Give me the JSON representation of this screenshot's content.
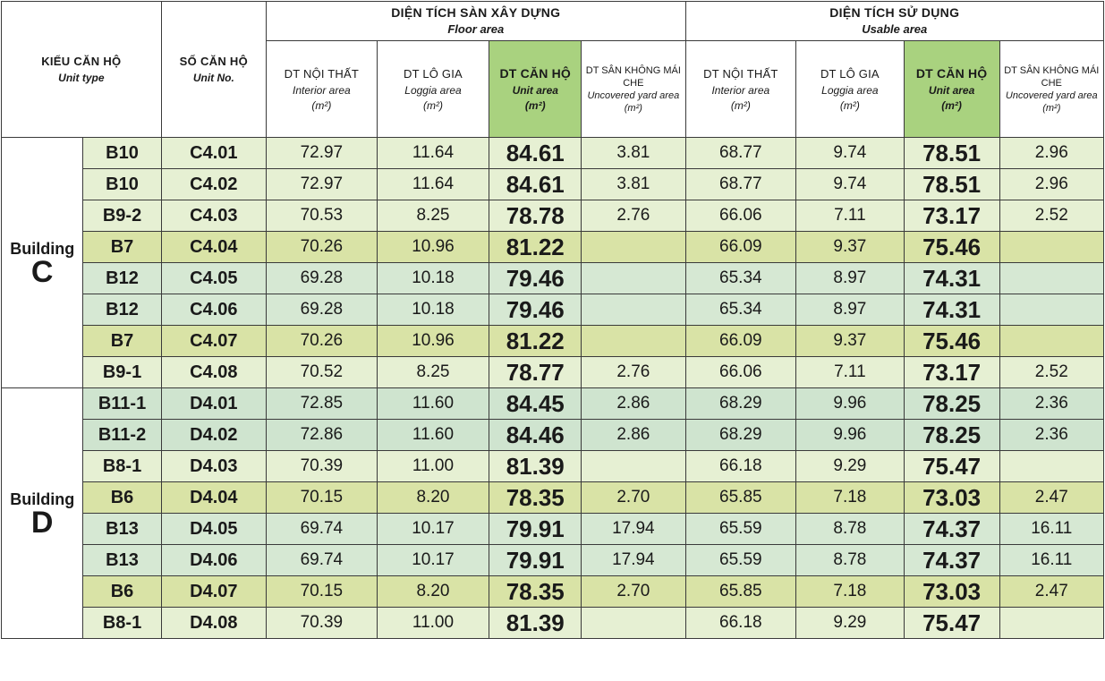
{
  "header": {
    "unit_type": {
      "main": "KIỂU CĂN HỘ",
      "sub": "Unit type"
    },
    "unit_no": {
      "main": "SỐ CĂN HỘ",
      "sub": "Unit No."
    },
    "floor_area": {
      "main": "DIỆN TÍCH SÀN XÂY DỰNG",
      "sub": "Floor area"
    },
    "usable_area": {
      "main": "DIỆN TÍCH SỬ DỤNG",
      "sub": "Usable area"
    },
    "columns": [
      {
        "main": "DT NỘI THẤT",
        "sub": "Interior area",
        "unit": "(m²)"
      },
      {
        "main": "DT LÔ GIA",
        "sub": "Loggia area",
        "unit": "(m²)"
      },
      {
        "main": "DT CĂN HỘ",
        "sub": "Unit area",
        "unit": "(m²)"
      },
      {
        "main": "DT SÂN KHÔNG MÁI CHE",
        "sub": "Uncovered yard area (m²)"
      }
    ]
  },
  "buildings": [
    {
      "word": "Building",
      "letter": "C"
    },
    {
      "word": "Building",
      "letter": "D"
    }
  ],
  "rows": [
    {
      "type": "B10",
      "no": "C4.01",
      "fi": "72.97",
      "fl": "11.64",
      "fu": "84.61",
      "fy": "3.81",
      "ui": "68.77",
      "ul": "9.74",
      "uu": "78.51",
      "uy": "2.96",
      "tone": "r-b"
    },
    {
      "type": "B10",
      "no": "C4.02",
      "fi": "72.97",
      "fl": "11.64",
      "fu": "84.61",
      "fy": "3.81",
      "ui": "68.77",
      "ul": "9.74",
      "uu": "78.51",
      "uy": "2.96",
      "tone": "r-b"
    },
    {
      "type": "B9-2",
      "no": "C4.03",
      "fi": "70.53",
      "fl": "8.25",
      "fu": "78.78",
      "fy": "2.76",
      "ui": "66.06",
      "ul": "7.11",
      "uu": "73.17",
      "uy": "2.52",
      "tone": "r-b"
    },
    {
      "type": "B7",
      "no": "C4.04",
      "fi": "70.26",
      "fl": "10.96",
      "fu": "81.22",
      "fy": "",
      "ui": "66.09",
      "ul": "9.37",
      "uu": "75.46",
      "uy": "",
      "tone": "r-o"
    },
    {
      "type": "B12",
      "no": "C4.05",
      "fi": "69.28",
      "fl": "10.18",
      "fu": "79.46",
      "fy": "",
      "ui": "65.34",
      "ul": "8.97",
      "uu": "74.31",
      "uy": "",
      "tone": "r-l"
    },
    {
      "type": "B12",
      "no": "C4.06",
      "fi": "69.28",
      "fl": "10.18",
      "fu": "79.46",
      "fy": "",
      "ui": "65.34",
      "ul": "8.97",
      "uu": "74.31",
      "uy": "",
      "tone": "r-l"
    },
    {
      "type": "B7",
      "no": "C4.07",
      "fi": "70.26",
      "fl": "10.96",
      "fu": "81.22",
      "fy": "",
      "ui": "66.09",
      "ul": "9.37",
      "uu": "75.46",
      "uy": "",
      "tone": "r-o"
    },
    {
      "type": "B9-1",
      "no": "C4.08",
      "fi": "70.52",
      "fl": "8.25",
      "fu": "78.77",
      "fy": "2.76",
      "ui": "66.06",
      "ul": "7.11",
      "uu": "73.17",
      "uy": "2.52",
      "tone": "r-b"
    },
    {
      "type": "B11-1",
      "no": "D4.01",
      "fi": "72.85",
      "fl": "11.60",
      "fu": "84.45",
      "fy": "2.86",
      "ui": "68.29",
      "ul": "9.96",
      "uu": "78.25",
      "uy": "2.36",
      "tone": "r-t"
    },
    {
      "type": "B11-2",
      "no": "D4.02",
      "fi": "72.86",
      "fl": "11.60",
      "fu": "84.46",
      "fy": "2.86",
      "ui": "68.29",
      "ul": "9.96",
      "uu": "78.25",
      "uy": "2.36",
      "tone": "r-t"
    },
    {
      "type": "B8-1",
      "no": "D4.03",
      "fi": "70.39",
      "fl": "11.00",
      "fu": "81.39",
      "fy": "",
      "ui": "66.18",
      "ul": "9.29",
      "uu": "75.47",
      "uy": "",
      "tone": "r-b"
    },
    {
      "type": "B6",
      "no": "D4.04",
      "fi": "70.15",
      "fl": "8.20",
      "fu": "78.35",
      "fy": "2.70",
      "ui": "65.85",
      "ul": "7.18",
      "uu": "73.03",
      "uy": "2.47",
      "tone": "r-o"
    },
    {
      "type": "B13",
      "no": "D4.05",
      "fi": "69.74",
      "fl": "10.17",
      "fu": "79.91",
      "fy": "17.94",
      "ui": "65.59",
      "ul": "8.78",
      "uu": "74.37",
      "uy": "16.11",
      "tone": "r-l"
    },
    {
      "type": "B13",
      "no": "D4.06",
      "fi": "69.74",
      "fl": "10.17",
      "fu": "79.91",
      "fy": "17.94",
      "ui": "65.59",
      "ul": "8.78",
      "uu": "74.37",
      "uy": "16.11",
      "tone": "r-l"
    },
    {
      "type": "B6",
      "no": "D4.07",
      "fi": "70.15",
      "fl": "8.20",
      "fu": "78.35",
      "fy": "2.70",
      "ui": "65.85",
      "ul": "7.18",
      "uu": "73.03",
      "uy": "2.47",
      "tone": "r-o"
    },
    {
      "type": "B8-1",
      "no": "D4.08",
      "fi": "70.39",
      "fl": "11.00",
      "fu": "81.39",
      "fy": "",
      "ui": "66.18",
      "ul": "9.29",
      "uu": "75.47",
      "uy": "",
      "tone": "r-b"
    }
  ],
  "colors": {
    "unit_header": "#a9d27f",
    "row_light": "#e6f0d3",
    "row_olive": "#d9e3a6",
    "row_teal": "#cfe4cf",
    "row_mint": "#d6e8d3",
    "border": "#3a3a3a"
  }
}
